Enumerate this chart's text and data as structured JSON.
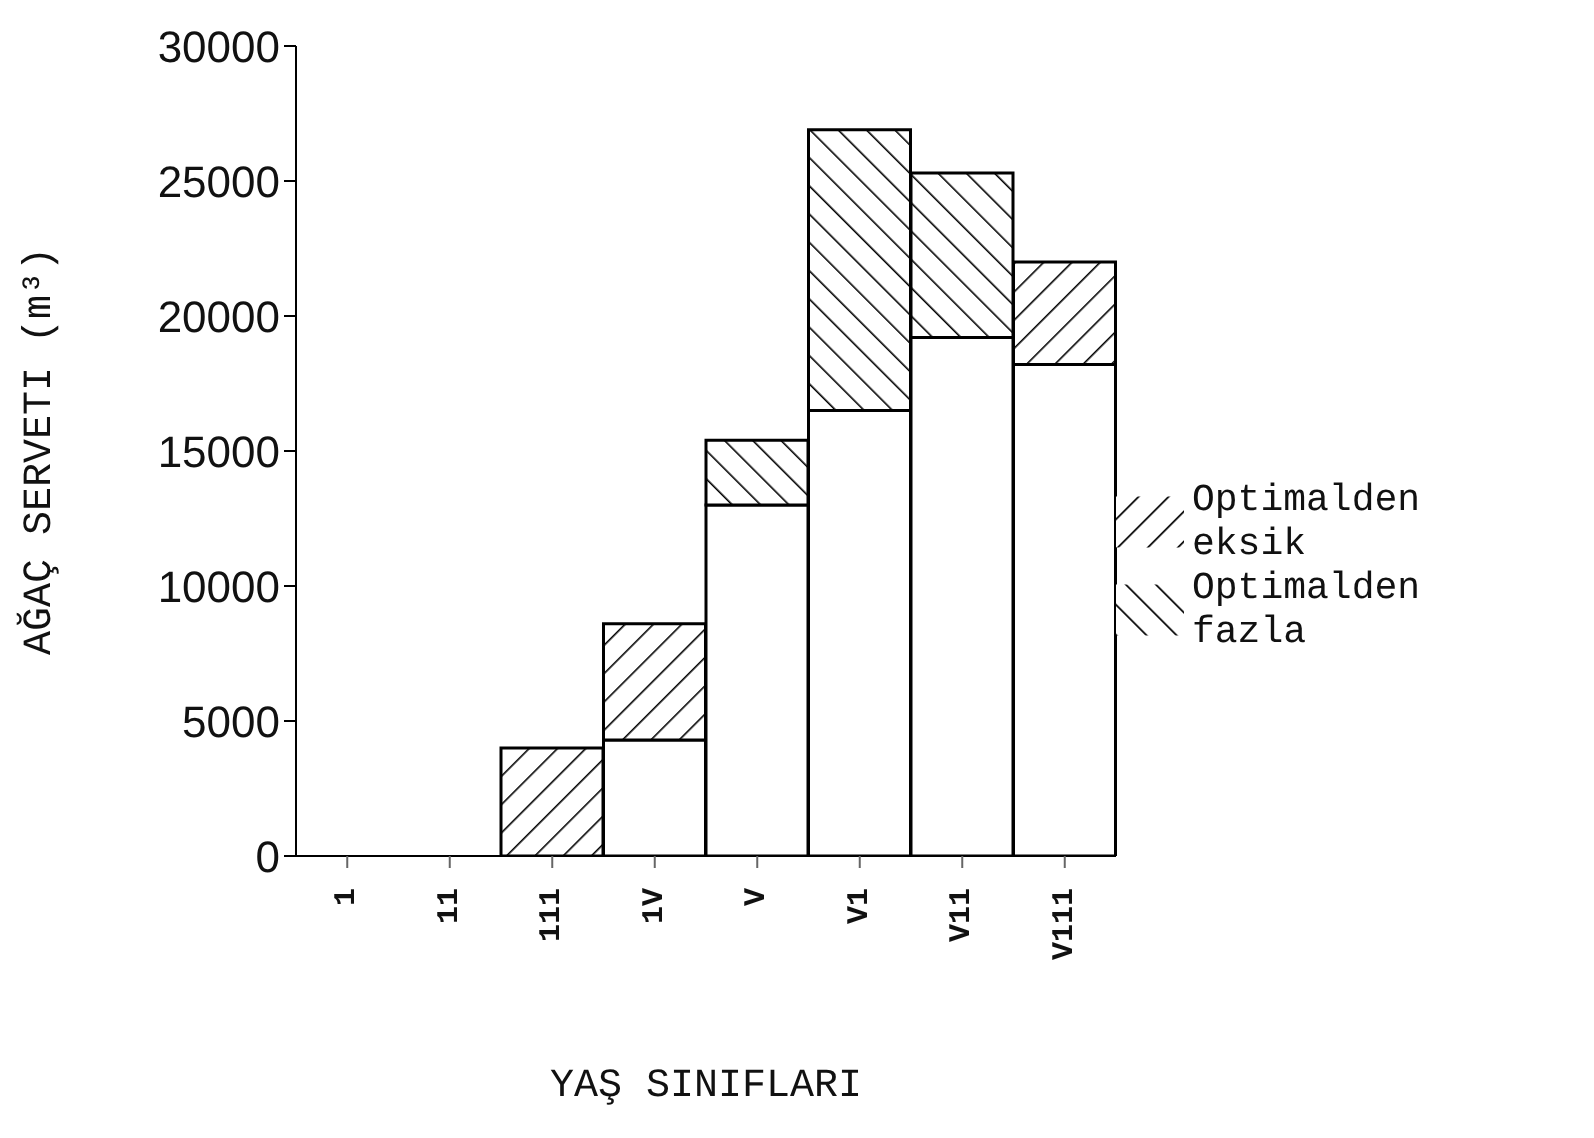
{
  "chart_data": {
    "type": "bar",
    "stacked": true,
    "ylabel": "AĞAÇ SERVETI (m³)",
    "xlabel": "YAŞ SINIFLARI",
    "categories": [
      "1",
      "11",
      "111",
      "1V",
      "V",
      "V1",
      "V11",
      "V111"
    ],
    "series": [
      {
        "color": "#ffffff",
        "values": [
          0,
          0,
          0,
          4300,
          13000,
          16500,
          19200,
          18200
        ]
      },
      {
        "name": "Optimalden fazla",
        "color": "#000000",
        "values": [
          null,
          null,
          null,
          null,
          2400,
          10400,
          6100,
          null
        ]
      },
      {
        "name": "Optimalden eksik",
        "color": "#000000",
        "values": [
          null,
          null,
          4000,
          4300,
          null,
          null,
          null,
          3800
        ]
      }
    ],
    "ylim": [
      0,
      30000
    ],
    "yticks": [
      0,
      5000,
      10000,
      15000,
      20000,
      25000,
      30000
    ],
    "legend": "right"
  }
}
